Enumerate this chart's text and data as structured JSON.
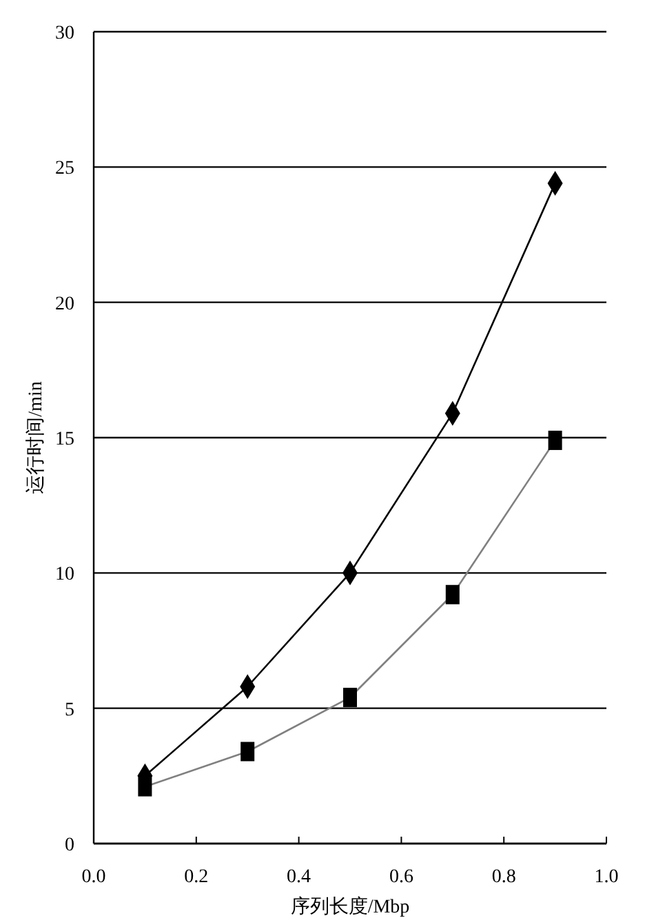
{
  "chart_data": {
    "type": "line",
    "xlabel": "序列长度/Mbp",
    "ylabel": "运行时间/min",
    "x": [
      0.1,
      0.3,
      0.5,
      0.7,
      0.9
    ],
    "series": [
      {
        "color": "#000000",
        "marker": "diamond",
        "values": [
          2.5,
          5.8,
          10,
          15.9,
          24.4
        ]
      },
      {
        "color": "#808080",
        "marker": "square",
        "values": [
          2.1,
          3.4,
          5.4,
          9.2,
          14.9
        ]
      }
    ],
    "xlim": [
      0,
      1
    ],
    "ylim": [
      0,
      30
    ],
    "xticks": [
      {
        "value": 0,
        "label": "0.0"
      },
      0.2,
      0.4,
      0.6,
      0.8,
      {
        "value": 1,
        "label": "1.0"
      }
    ],
    "yticks": [
      0,
      5,
      10,
      15,
      20,
      25,
      30
    ],
    "grid": "y"
  }
}
